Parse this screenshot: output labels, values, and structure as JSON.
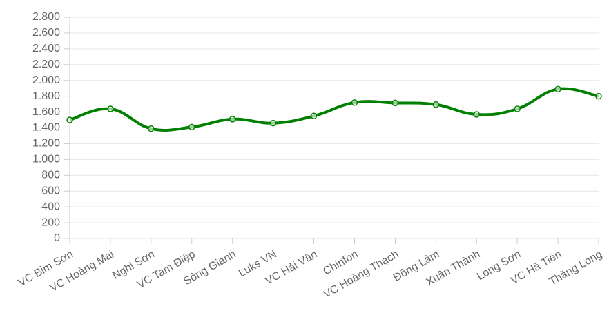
{
  "chart_data": {
    "type": "line",
    "categories": [
      "VC Bỉm Sơn",
      "VC Hoàng Mai",
      "Nghi Sơn",
      "VC Tam Điệp",
      "Sông Gianh",
      "Luks VN",
      "VC Hải Vân",
      "Chinfon",
      "VC Hoàng Thạch",
      "Đồng Lâm",
      "Xuân Thành",
      "Long Sơn",
      "VC Hà Tiên",
      "Thăng Long"
    ],
    "series": [
      {
        "color": "#008000",
        "values": [
          1500,
          1640,
          1390,
          1410,
          1510,
          1460,
          1550,
          1720,
          1715,
          1695,
          1570,
          1640,
          1890,
          1800
        ]
      }
    ],
    "ylim": [
      0,
      2800
    ],
    "yticks": [
      0,
      200,
      400,
      600,
      800,
      {
        "value": 1000,
        "label": "1.000"
      },
      {
        "value": 1200,
        "label": "1.200"
      },
      {
        "value": 1400,
        "label": "1.400"
      },
      {
        "value": 1600,
        "label": "1.600"
      },
      {
        "value": 1800,
        "label": "1.800"
      },
      {
        "value": 2000,
        "label": "2.000"
      },
      {
        "value": 2200,
        "label": "2.200"
      },
      {
        "value": 2400,
        "label": "2.400"
      },
      {
        "value": 2600,
        "label": "2.600"
      },
      {
        "value": 2800,
        "label": "2.800"
      }
    ],
    "grid": true
  }
}
